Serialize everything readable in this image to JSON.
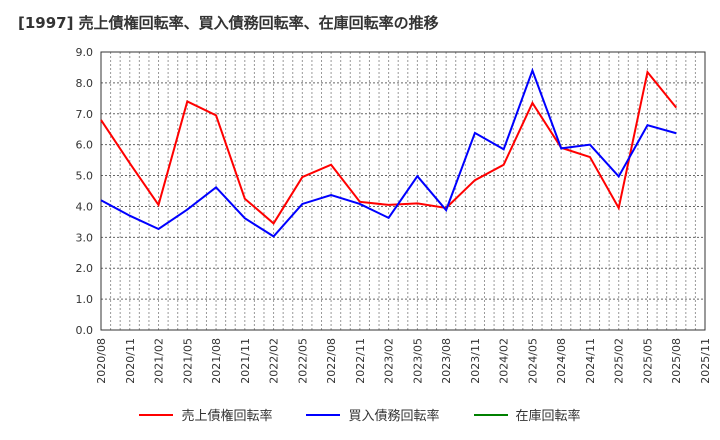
{
  "chart_data": {
    "type": "line",
    "title": "[1997]  売上債権回転率、買入債務回転率、在庫回転率の推移",
    "xlabel": "",
    "ylabel": "",
    "ylim": [
      0,
      9
    ],
    "yticks": [
      "0.0",
      "1.0",
      "2.0",
      "3.0",
      "4.0",
      "5.0",
      "6.0",
      "7.0",
      "8.0",
      "9.0"
    ],
    "xticks": [
      "2020/08",
      "2020/11",
      "2021/02",
      "2021/05",
      "2021/08",
      "2021/11",
      "2022/02",
      "2022/05",
      "2022/08",
      "2022/11",
      "2023/02",
      "2023/05",
      "2023/08",
      "2023/11",
      "2024/02",
      "2024/05",
      "2024/08",
      "2024/11",
      "2025/02",
      "2025/05",
      "2025/08",
      "2025/11"
    ],
    "grid": true,
    "legend_position": "bottom",
    "series": [
      {
        "name": "売上債権回転率",
        "color": "#ff0000",
        "values": [
          6.8,
          5.4,
          4.05,
          7.4,
          6.95,
          4.25,
          3.45,
          4.95,
          5.35,
          4.15,
          4.05,
          4.1,
          3.95,
          4.85,
          5.35,
          7.35,
          5.9,
          5.6,
          3.95,
          8.35,
          7.2
        ]
      },
      {
        "name": "買入債務回転率",
        "color": "#0000ff",
        "values": [
          4.2,
          3.7,
          3.27,
          3.9,
          4.62,
          3.62,
          3.03,
          4.08,
          4.37,
          4.08,
          3.63,
          4.98,
          3.88,
          6.38,
          5.85,
          8.4,
          5.88,
          6.0,
          4.97,
          6.63,
          6.37
        ]
      },
      {
        "name": "在庫回転率",
        "color": "#008000",
        "values": []
      }
    ]
  }
}
